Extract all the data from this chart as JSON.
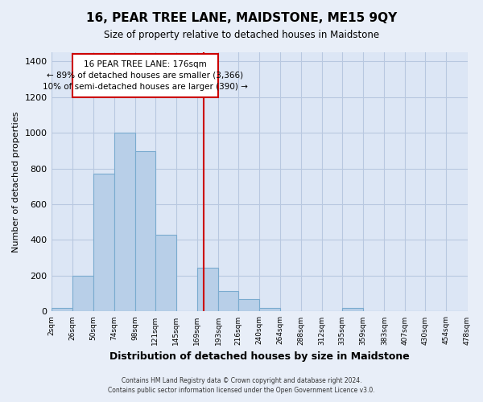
{
  "title": "16, PEAR TREE LANE, MAIDSTONE, ME15 9QY",
  "subtitle": "Size of property relative to detached houses in Maidstone",
  "xlabel": "Distribution of detached houses by size in Maidstone",
  "ylabel": "Number of detached properties",
  "bar_edges": [
    2,
    26,
    50,
    74,
    98,
    121,
    145,
    169,
    193,
    216,
    240,
    264,
    288,
    312,
    335,
    359,
    383,
    407,
    430,
    454,
    478
  ],
  "bar_heights": [
    20,
    200,
    770,
    1000,
    895,
    430,
    0,
    245,
    115,
    70,
    20,
    0,
    0,
    0,
    20,
    0,
    0,
    0,
    0,
    0
  ],
  "bar_color": "#b8cfe8",
  "bar_edge_color": "#7aabcf",
  "vline_x": 176,
  "vline_color": "#cc0000",
  "box_text_line1": "16 PEAR TREE LANE: 176sqm",
  "box_text_line2": "← 89% of detached houses are smaller (3,366)",
  "box_text_line3": "10% of semi-detached houses are larger (390) →",
  "ylim": [
    0,
    1450
  ],
  "yticks": [
    0,
    200,
    400,
    600,
    800,
    1000,
    1200,
    1400
  ],
  "xtick_labels": [
    "2sqm",
    "26sqm",
    "50sqm",
    "74sqm",
    "98sqm",
    "121sqm",
    "145sqm",
    "169sqm",
    "193sqm",
    "216sqm",
    "240sqm",
    "264sqm",
    "288sqm",
    "312sqm",
    "335sqm",
    "359sqm",
    "383sqm",
    "407sqm",
    "430sqm",
    "454sqm",
    "478sqm"
  ],
  "footer_line1": "Contains HM Land Registry data © Crown copyright and database right 2024.",
  "footer_line2": "Contains public sector information licensed under the Open Government Licence v3.0.",
  "background_color": "#e8eef8",
  "plot_background_color": "#dce6f5",
  "grid_color": "#b8c8e0"
}
